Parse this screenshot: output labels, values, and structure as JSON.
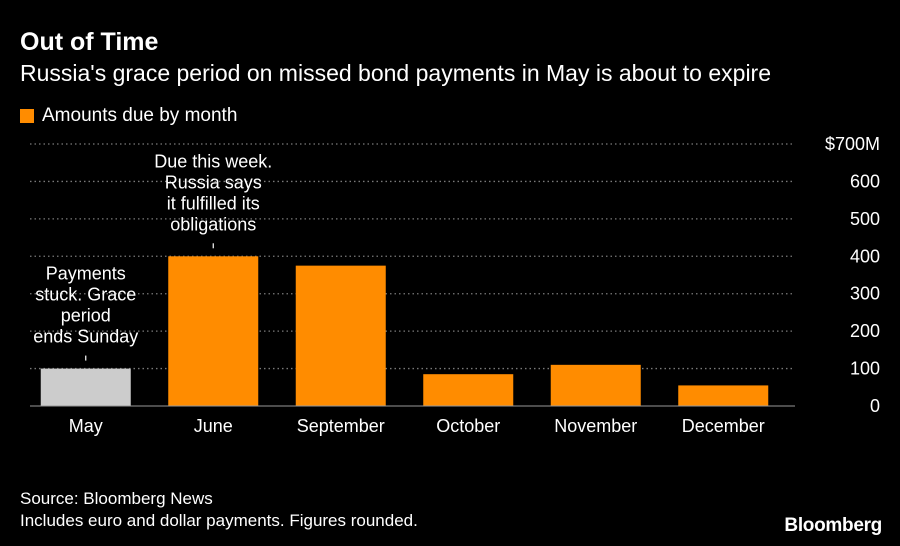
{
  "header": {
    "title": "Out of Time",
    "subtitle": "Russia's grace period on missed bond payments in May is about to expire"
  },
  "legend": {
    "label": "Amounts due by month"
  },
  "footer": {
    "source": "Source: Bloomberg News",
    "note": "Includes euro and dollar payments. Figures rounded.",
    "brand": "Bloomberg"
  },
  "colors": {
    "orange": "#FF8C00",
    "gray": "#CCCCCC",
    "grid": "#7a7a7a",
    "background": "#000000"
  },
  "chart_data": {
    "type": "bar",
    "categories": [
      "May",
      "June",
      "September",
      "October",
      "November",
      "December"
    ],
    "values": [
      100,
      400,
      375,
      85,
      110,
      55
    ],
    "highlight": [
      "gray",
      "orange",
      "orange",
      "orange",
      "orange",
      "orange"
    ],
    "ylim": [
      0,
      700
    ],
    "yticks": [
      0,
      100,
      200,
      300,
      400,
      500,
      600,
      700
    ],
    "ytick_labels": [
      "0",
      "100",
      "200",
      "300",
      "400",
      "500",
      "600",
      "$700M"
    ],
    "grid": true,
    "annotations": [
      {
        "category": "May",
        "lines": [
          "Payments",
          "stuck. Grace",
          "period",
          "ends Sunday"
        ]
      },
      {
        "category": "June",
        "lines": [
          "Due this week.",
          "Russia says",
          "it fulfilled its",
          "obligations"
        ]
      }
    ]
  }
}
